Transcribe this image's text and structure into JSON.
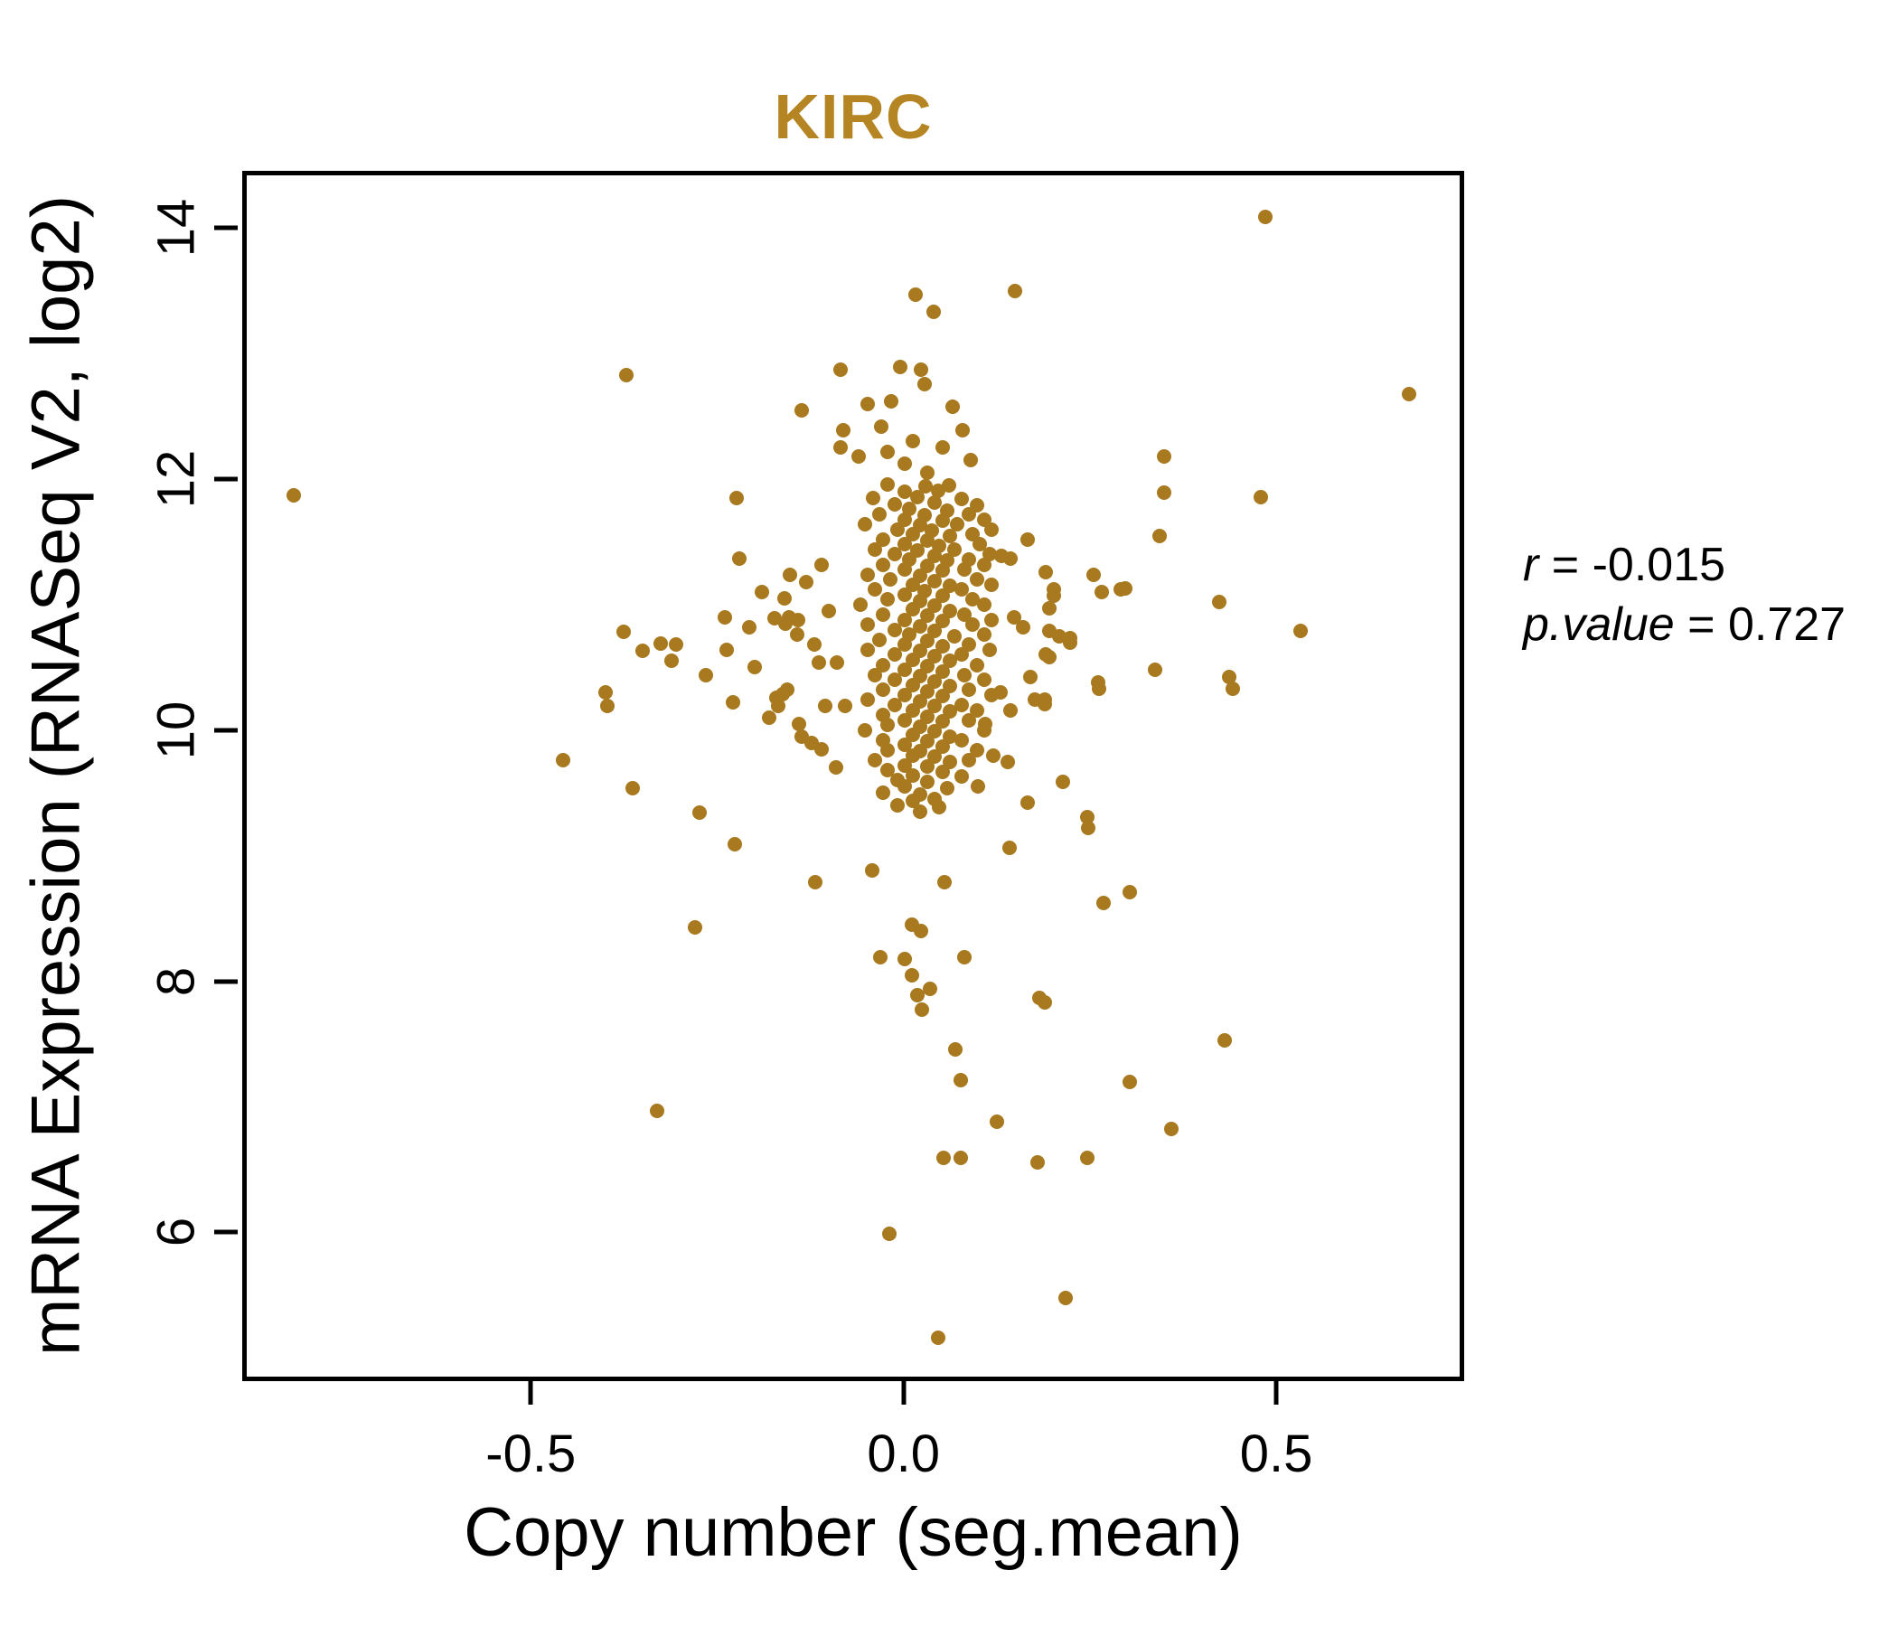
{
  "title": "KIRC",
  "annotation": {
    "r_label": "r",
    "r_value": "= -0.015",
    "p_label": "p.value",
    "p_value": "= 0.727"
  },
  "colors": {
    "title": "#B48522",
    "point": "#A8791E",
    "axis": "#000000",
    "background": "#FFFFFF"
  },
  "chart_data": {
    "type": "scatter",
    "title": "KIRC",
    "xlabel": "Copy number (seg.mean)",
    "ylabel": "mRNA Expression (RNASeq V2, log2)",
    "legend": null,
    "grid": false,
    "xlim": [
      -0.881,
      0.746
    ],
    "ylim": [
      4.85,
      14.42
    ],
    "x_ticks": [
      -0.5,
      0.0,
      0.5
    ],
    "x_tick_labels": [
      "-0.5",
      "0.0",
      "0.5"
    ],
    "y_ticks": [
      6,
      8,
      10,
      12,
      14
    ],
    "y_tick_labels": [
      "6",
      "8",
      "10",
      "12",
      "14"
    ],
    "marker_diameter_px": 16,
    "correlation": {
      "r": -0.015,
      "p_value": 0.727
    },
    "points": [
      [
        -0.818,
        11.87
      ],
      [
        0.485,
        14.09
      ],
      [
        0.678,
        12.68
      ],
      [
        -0.372,
        12.83
      ],
      [
        0.016,
        13.47
      ],
      [
        0.04,
        13.33
      ],
      [
        0.15,
        13.5
      ],
      [
        -0.084,
        12.87
      ],
      [
        -0.005,
        12.89
      ],
      [
        0.024,
        12.87
      ],
      [
        0.028,
        12.76
      ],
      [
        -0.136,
        12.55
      ],
      [
        -0.048,
        12.6
      ],
      [
        -0.017,
        12.62
      ],
      [
        0.066,
        12.58
      ],
      [
        0.079,
        12.39
      ],
      [
        -0.081,
        12.39
      ],
      [
        -0.084,
        12.25
      ],
      [
        0.349,
        12.18
      ],
      [
        0.349,
        11.89
      ],
      [
        0.343,
        11.55
      ],
      [
        0.479,
        11.86
      ],
      [
        -0.224,
        11.85
      ],
      [
        -0.22,
        11.37
      ],
      [
        -0.152,
        11.24
      ],
      [
        -0.375,
        10.78
      ],
      [
        -0.35,
        10.63
      ],
      [
        -0.326,
        10.69
      ],
      [
        -0.305,
        10.68
      ],
      [
        -0.311,
        10.55
      ],
      [
        -0.207,
        10.82
      ],
      [
        -0.173,
        10.89
      ],
      [
        -0.159,
        10.85
      ],
      [
        -0.237,
        10.64
      ],
      [
        -0.265,
        10.44
      ],
      [
        -0.4,
        10.3
      ],
      [
        -0.397,
        10.19
      ],
      [
        -0.229,
        10.22
      ],
      [
        -0.162,
        10.29
      ],
      [
        -0.168,
        10.19
      ],
      [
        -0.457,
        9.76
      ],
      [
        -0.363,
        9.54
      ],
      [
        -0.274,
        9.34
      ],
      [
        -0.226,
        9.09
      ],
      [
        -0.154,
        10.9
      ],
      [
        -0.141,
        10.88
      ],
      [
        -0.143,
        10.76
      ],
      [
        -0.114,
        10.54
      ],
      [
        -0.089,
        10.54
      ],
      [
        -0.156,
        10.32
      ],
      [
        -0.171,
        10.26
      ],
      [
        -0.105,
        10.19
      ],
      [
        -0.078,
        10.19
      ],
      [
        -0.123,
        9.9
      ],
      [
        -0.136,
        9.95
      ],
      [
        0.166,
        11.52
      ],
      [
        0.131,
        11.39
      ],
      [
        0.143,
        11.37
      ],
      [
        0.191,
        11.26
      ],
      [
        0.202,
        11.12
      ],
      [
        0.196,
        10.97
      ],
      [
        0.255,
        11.24
      ],
      [
        0.266,
        11.1
      ],
      [
        0.291,
        11.12
      ],
      [
        0.148,
        10.9
      ],
      [
        0.161,
        10.82
      ],
      [
        0.196,
        10.79
      ],
      [
        0.209,
        10.75
      ],
      [
        0.224,
        10.73
      ],
      [
        0.191,
        10.6
      ],
      [
        0.17,
        10.42
      ],
      [
        0.261,
        10.38
      ],
      [
        0.176,
        10.24
      ],
      [
        0.19,
        10.24
      ],
      [
        0.143,
        10.16
      ],
      [
        0.202,
        11.07
      ],
      [
        0.298,
        11.13
      ],
      [
        0.223,
        10.7
      ],
      [
        0.195,
        10.58
      ],
      [
        0.189,
        10.21
      ],
      [
        0.424,
        11.02
      ],
      [
        0.533,
        10.79
      ],
      [
        0.337,
        10.48
      ],
      [
        0.262,
        10.33
      ],
      [
        0.437,
        10.42
      ],
      [
        0.442,
        10.33
      ],
      [
        0.214,
        9.59
      ],
      [
        0.247,
        9.31
      ],
      [
        0.166,
        9.42
      ],
      [
        0.248,
        9.22
      ],
      [
        0.142,
        9.06
      ],
      [
        0.268,
        8.62
      ],
      [
        0.304,
        8.71
      ],
      [
        0.182,
        7.87
      ],
      [
        0.431,
        7.53
      ],
      [
        0.304,
        7.2
      ],
      [
        0.359,
        6.82
      ],
      [
        0.125,
        6.88
      ],
      [
        0.18,
        6.56
      ],
      [
        0.247,
        6.59
      ],
      [
        -0.119,
        8.79
      ],
      [
        -0.042,
        8.88
      ],
      [
        0.055,
        8.79
      ],
      [
        -0.28,
        8.43
      ],
      [
        0.011,
        8.45
      ],
      [
        0.023,
        8.4
      ],
      [
        -0.031,
        8.19
      ],
      [
        0.001,
        8.18
      ],
      [
        0.082,
        8.19
      ],
      [
        0.011,
        8.05
      ],
      [
        0.035,
        7.94
      ],
      [
        0.189,
        7.83
      ],
      [
        0.025,
        7.77
      ],
      [
        0.077,
        7.21
      ],
      [
        -0.331,
        6.97
      ],
      [
        0.054,
        6.59
      ],
      [
        0.077,
        6.59
      ],
      [
        -0.019,
        5.99
      ],
      [
        0.218,
        5.48
      ],
      [
        0.047,
        5.16
      ],
      [
        0.018,
        7.89
      ],
      [
        0.069,
        7.46
      ],
      [
        -0.03,
        12.42
      ],
      [
        0.012,
        12.3
      ],
      [
        0.052,
        12.25
      ],
      [
        -0.06,
        12.18
      ],
      [
        0.09,
        12.15
      ],
      [
        0.002,
        12.12
      ],
      [
        0.032,
        12.05
      ],
      [
        -0.022,
        12.22
      ],
      [
        -0.19,
        11.1
      ],
      [
        -0.16,
        11.05
      ],
      [
        -0.13,
        11.18
      ],
      [
        -0.11,
        11.32
      ],
      [
        -0.1,
        10.95
      ],
      [
        -0.12,
        10.68
      ],
      [
        -0.2,
        10.5
      ],
      [
        -0.18,
        10.1
      ],
      [
        -0.14,
        10.05
      ],
      [
        -0.11,
        9.85
      ],
      [
        -0.09,
        9.7
      ],
      [
        -0.24,
        10.9
      ],
      [
        0.12,
        9.8
      ],
      [
        0.1,
        9.55
      ],
      [
        0.14,
        9.75
      ],
      [
        0.11,
        10.05
      ],
      [
        0.13,
        10.3
      ],
      [
        -0.021,
        11.96
      ],
      [
        0.029,
        11.94
      ],
      [
        0.061,
        11.95
      ],
      [
        0.001,
        11.9
      ],
      [
        0.047,
        11.91
      ],
      [
        -0.041,
        11.85
      ],
      [
        0.019,
        11.86
      ],
      [
        0.078,
        11.84
      ],
      [
        -0.012,
        11.8
      ],
      [
        0.042,
        11.81
      ],
      [
        0.098,
        11.79
      ],
      [
        0.008,
        11.76
      ],
      [
        0.058,
        11.75
      ],
      [
        -0.032,
        11.72
      ],
      [
        0.028,
        11.71
      ],
      [
        0.088,
        11.72
      ],
      [
        0.002,
        11.68
      ],
      [
        0.052,
        11.67
      ],
      [
        0.108,
        11.68
      ],
      [
        -0.052,
        11.64
      ],
      [
        0.022,
        11.63
      ],
      [
        0.072,
        11.64
      ],
      [
        -0.008,
        11.6
      ],
      [
        0.038,
        11.59
      ],
      [
        0.118,
        11.6
      ],
      [
        0.012,
        11.56
      ],
      [
        0.062,
        11.55
      ],
      [
        0.092,
        11.56
      ],
      [
        -0.028,
        11.52
      ],
      [
        0.032,
        11.51
      ],
      [
        0.002,
        11.48
      ],
      [
        0.048,
        11.47
      ],
      [
        0.102,
        11.48
      ],
      [
        -0.038,
        11.44
      ],
      [
        0.018,
        11.43
      ],
      [
        0.068,
        11.44
      ],
      [
        -0.012,
        11.4
      ],
      [
        0.042,
        11.39
      ],
      [
        0.115,
        11.4
      ],
      [
        0.008,
        11.36
      ],
      [
        0.058,
        11.35
      ],
      [
        0.088,
        11.36
      ],
      [
        -0.028,
        11.32
      ],
      [
        0.032,
        11.31
      ],
      [
        0.108,
        11.32
      ],
      [
        0.002,
        11.28
      ],
      [
        0.052,
        11.27
      ],
      [
        0.082,
        11.28
      ],
      [
        -0.048,
        11.24
      ],
      [
        0.022,
        11.23
      ],
      [
        -0.018,
        11.2
      ],
      [
        0.042,
        11.19
      ],
      [
        0.098,
        11.2
      ],
      [
        0.012,
        11.16
      ],
      [
        0.062,
        11.15
      ],
      [
        0.118,
        11.16
      ],
      [
        -0.038,
        11.12
      ],
      [
        0.028,
        11.11
      ],
      [
        0.078,
        11.12
      ],
      [
        0.002,
        11.08
      ],
      [
        0.052,
        11.07
      ],
      [
        -0.022,
        11.04
      ],
      [
        0.022,
        11.03
      ],
      [
        0.092,
        11.04
      ],
      [
        -0.058,
        11.0
      ],
      [
        0.042,
        10.99
      ],
      [
        0.108,
        11.0
      ],
      [
        0.012,
        10.96
      ],
      [
        0.062,
        10.95
      ],
      [
        -0.028,
        10.92
      ],
      [
        0.032,
        10.91
      ],
      [
        0.082,
        10.92
      ],
      [
        0.002,
        10.88
      ],
      [
        0.052,
        10.87
      ],
      [
        0.118,
        10.88
      ],
      [
        -0.048,
        10.84
      ],
      [
        0.022,
        10.83
      ],
      [
        0.092,
        10.84
      ],
      [
        -0.012,
        10.8
      ],
      [
        0.042,
        10.79
      ],
      [
        0.008,
        10.76
      ],
      [
        0.068,
        10.75
      ],
      [
        0.108,
        10.76
      ],
      [
        -0.032,
        10.72
      ],
      [
        0.032,
        10.71
      ],
      [
        0.002,
        10.68
      ],
      [
        0.052,
        10.67
      ],
      [
        0.088,
        10.68
      ],
      [
        -0.048,
        10.64
      ],
      [
        0.022,
        10.63
      ],
      [
        0.115,
        10.64
      ],
      [
        -0.012,
        10.6
      ],
      [
        0.042,
        10.59
      ],
      [
        0.078,
        10.6
      ],
      [
        0.012,
        10.56
      ],
      [
        0.062,
        10.55
      ],
      [
        -0.028,
        10.52
      ],
      [
        0.032,
        10.51
      ],
      [
        0.098,
        10.52
      ],
      [
        0.002,
        10.48
      ],
      [
        0.052,
        10.47
      ],
      [
        -0.038,
        10.44
      ],
      [
        0.022,
        10.43
      ],
      [
        0.082,
        10.44
      ],
      [
        -0.012,
        10.4
      ],
      [
        0.042,
        10.39
      ],
      [
        0.108,
        10.4
      ],
      [
        0.012,
        10.36
      ],
      [
        0.062,
        10.35
      ],
      [
        -0.028,
        10.32
      ],
      [
        0.032,
        10.31
      ],
      [
        0.088,
        10.32
      ],
      [
        0.002,
        10.28
      ],
      [
        0.052,
        10.27
      ],
      [
        0.118,
        10.28
      ],
      [
        -0.048,
        10.24
      ],
      [
        0.022,
        10.23
      ],
      [
        -0.012,
        10.2
      ],
      [
        0.042,
        10.19
      ],
      [
        0.078,
        10.2
      ],
      [
        0.012,
        10.16
      ],
      [
        0.062,
        10.15
      ],
      [
        0.098,
        10.16
      ],
      [
        -0.028,
        10.12
      ],
      [
        0.032,
        10.11
      ],
      [
        0.002,
        10.08
      ],
      [
        0.052,
        10.07
      ],
      [
        0.088,
        10.08
      ],
      [
        -0.022,
        10.04
      ],
      [
        0.022,
        10.03
      ],
      [
        -0.052,
        10.0
      ],
      [
        0.042,
        9.99
      ],
      [
        0.108,
        10.0
      ],
      [
        0.012,
        9.96
      ],
      [
        0.062,
        9.95
      ],
      [
        -0.028,
        9.92
      ],
      [
        0.032,
        9.91
      ],
      [
        0.078,
        9.92
      ],
      [
        0.002,
        9.88
      ],
      [
        0.052,
        9.87
      ],
      [
        -0.022,
        9.84
      ],
      [
        0.022,
        9.83
      ],
      [
        0.098,
        9.84
      ],
      [
        0.012,
        9.8
      ],
      [
        0.042,
        9.79
      ],
      [
        -0.038,
        9.76
      ],
      [
        0.062,
        9.75
      ],
      [
        0.088,
        9.76
      ],
      [
        0.002,
        9.72
      ],
      [
        0.032,
        9.71
      ],
      [
        -0.022,
        9.68
      ],
      [
        0.052,
        9.67
      ],
      [
        0.012,
        9.64
      ],
      [
        0.078,
        9.63
      ],
      [
        -0.008,
        9.6
      ],
      [
        0.032,
        9.59
      ],
      [
        0.002,
        9.55
      ],
      [
        0.058,
        9.54
      ],
      [
        -0.028,
        9.5
      ],
      [
        0.022,
        9.49
      ],
      [
        0.042,
        9.45
      ],
      [
        0.012,
        9.44
      ],
      [
        -0.008,
        9.4
      ],
      [
        0.048,
        9.39
      ],
      [
        0.022,
        9.35
      ]
    ]
  }
}
